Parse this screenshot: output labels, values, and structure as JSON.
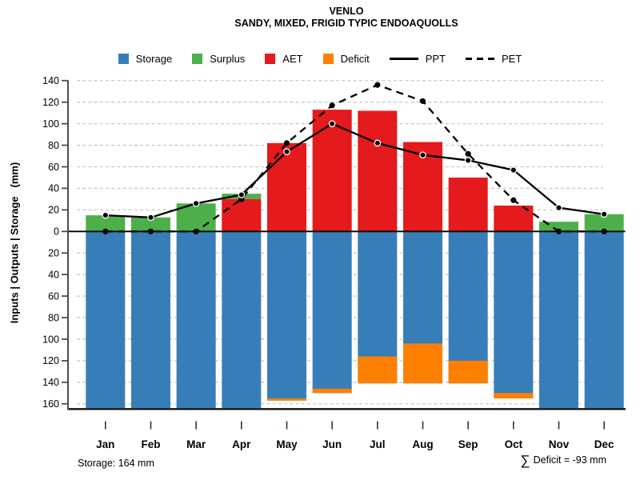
{
  "title": "VENLO",
  "subtitle": "SANDY, MIXED, FRIGID TYPIC ENDOAQUOLLS",
  "legend": [
    {
      "label": "Storage",
      "type": "swatch",
      "color_key": "storage"
    },
    {
      "label": "Surplus",
      "type": "swatch",
      "color_key": "surplus"
    },
    {
      "label": "AET",
      "type": "swatch",
      "color_key": "aet"
    },
    {
      "label": "Deficit",
      "type": "swatch",
      "color_key": "deficit"
    },
    {
      "label": "PPT",
      "type": "line-solid",
      "color_key": "line"
    },
    {
      "label": "PET",
      "type": "line-dashed",
      "color_key": "line"
    }
  ],
  "colors": {
    "storage": "#377EB8",
    "surplus": "#4DAF4A",
    "aet": "#E41A1C",
    "deficit": "#FF7F00",
    "line": "#000000",
    "grid": "#C8C8C8",
    "axis": "#4D4D4D",
    "zero_line": "#000000",
    "bottom_line": "#111111"
  },
  "footer": {
    "storage_note": "Storage: 164 mm",
    "deficit_sigma": "∑",
    "deficit_note": "Deficit = -93 mm"
  },
  "chart_data": {
    "type": "bar",
    "subtype": "soil-water-balance: stacked bars above/below zero with two point-marker lines",
    "title": "VENLO",
    "subtitle": "SANDY, MIXED, FRIGID TYPIC ENDOAQUOLLS",
    "xlabel": "",
    "ylabel": "Inputs | Outputs | Storage   (mm)",
    "categories": [
      "Jan",
      "Feb",
      "Mar",
      "Apr",
      "May",
      "Jun",
      "Jul",
      "Aug",
      "Sep",
      "Oct",
      "Nov",
      "Dec"
    ],
    "series": [
      {
        "name": "AET",
        "kind": "bar-up",
        "color_key": "aet",
        "values": [
          0,
          0,
          0,
          30,
          82,
          113,
          112,
          83,
          50,
          24,
          0,
          0
        ]
      },
      {
        "name": "Surplus",
        "kind": "bar-up-stacked-on-AET",
        "color_key": "surplus",
        "values": [
          15,
          13,
          26,
          5,
          0,
          0,
          0,
          0,
          0,
          0,
          9,
          16
        ]
      },
      {
        "name": "Storage",
        "kind": "bar-down-depth",
        "color_key": "storage",
        "values": [
          164,
          164,
          164,
          164,
          157,
          150,
          141,
          141,
          141,
          155,
          164,
          164
        ]
      },
      {
        "name": "Deficit",
        "kind": "bar-down-overlay",
        "color_key": "deficit",
        "values": [
          0,
          0,
          0,
          0,
          2,
          4,
          25,
          37,
          21,
          5,
          0,
          0
        ]
      },
      {
        "name": "PPT",
        "kind": "line-solid",
        "color_key": "line",
        "values": [
          15,
          13,
          26,
          34,
          74,
          100,
          82,
          71,
          66,
          57,
          22,
          16
        ]
      },
      {
        "name": "PET",
        "kind": "line-dashed",
        "color_key": "line",
        "values": [
          0,
          0,
          0,
          30,
          82,
          117,
          136,
          121,
          72,
          29,
          0,
          0
        ]
      }
    ],
    "y_tick_values": [
      140,
      120,
      100,
      80,
      60,
      40,
      20,
      0,
      -20,
      -40,
      -60,
      -80,
      -100,
      -120,
      -140,
      -160
    ],
    "y_tick_labels_absolute": true,
    "ylim": [
      -164,
      140
    ],
    "grid": "dashed-horizontal",
    "legend_position": "top",
    "annotations": [
      "Storage: 164 mm",
      "∑ Deficit = -93 mm"
    ]
  }
}
